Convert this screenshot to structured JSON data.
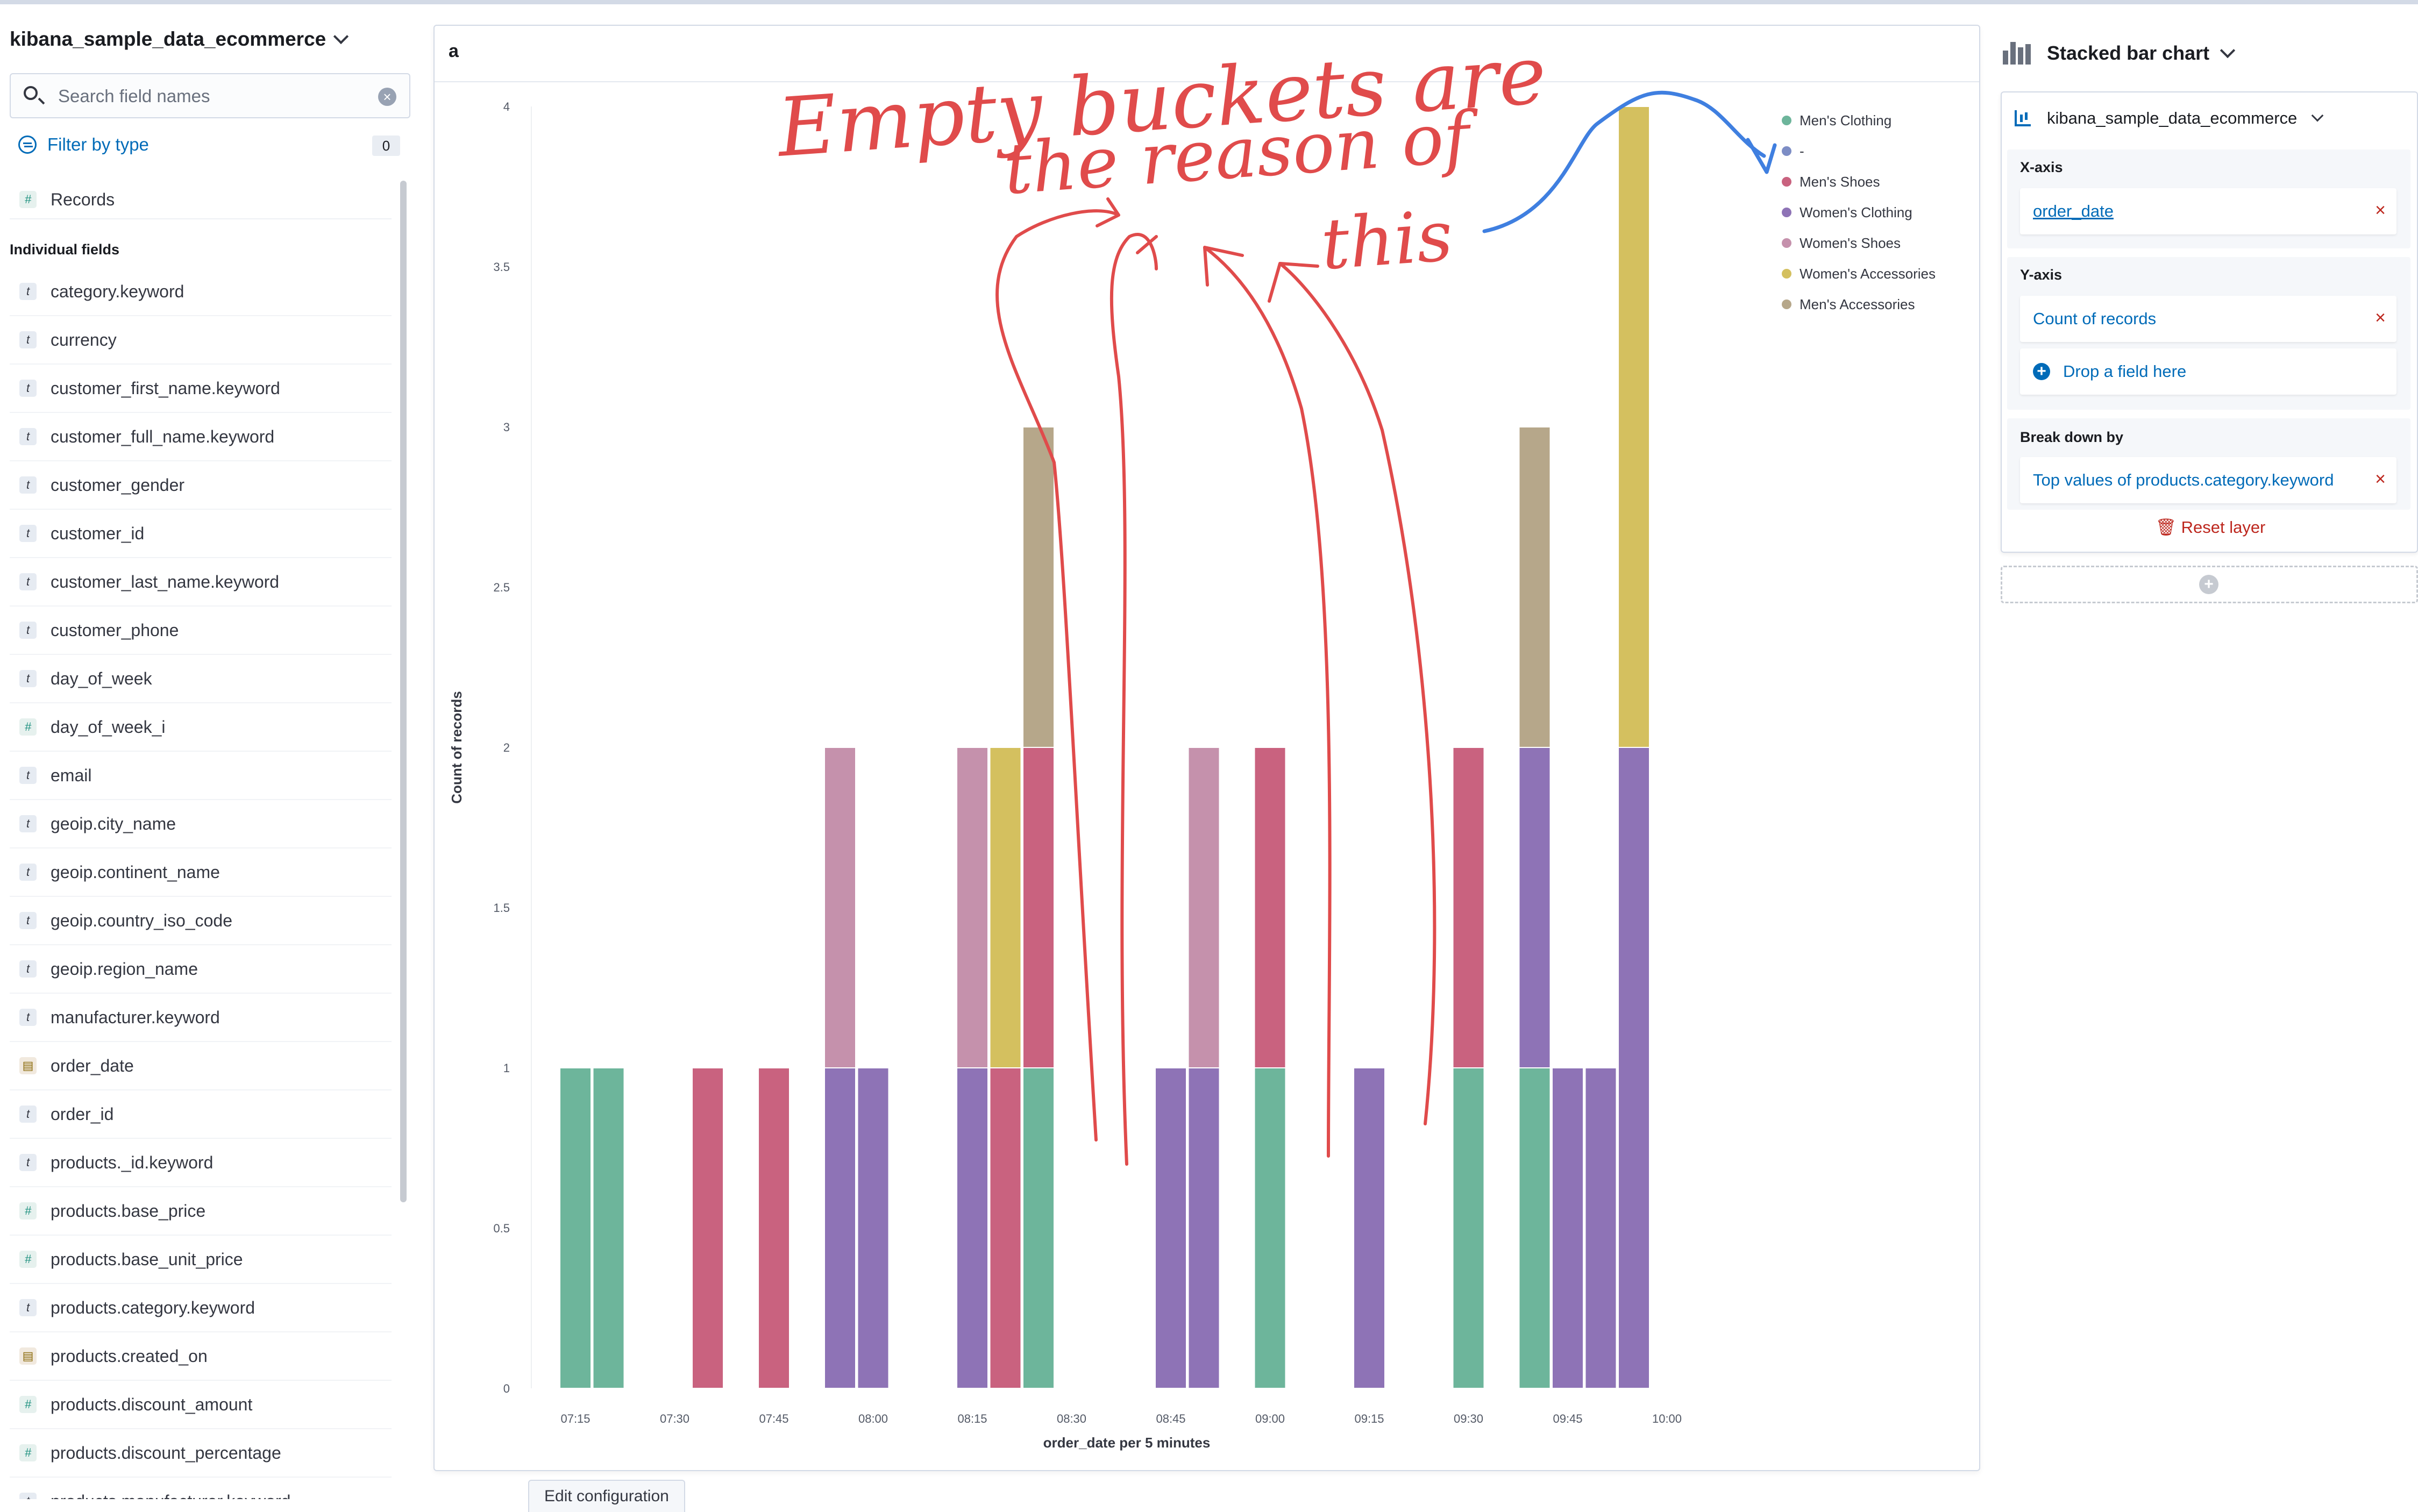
{
  "sidebar": {
    "index_pattern": "kibana_sample_data_ecommerce",
    "search_placeholder": "Search field names",
    "filter_label": "Filter by type",
    "filter_count": "0",
    "records_label": "Records",
    "section_label": "Individual fields",
    "fields": [
      {
        "name": "category.keyword",
        "type": "t"
      },
      {
        "name": "currency",
        "type": "t"
      },
      {
        "name": "customer_first_name.keyword",
        "type": "t"
      },
      {
        "name": "customer_full_name.keyword",
        "type": "t"
      },
      {
        "name": "customer_gender",
        "type": "t"
      },
      {
        "name": "customer_id",
        "type": "t"
      },
      {
        "name": "customer_last_name.keyword",
        "type": "t"
      },
      {
        "name": "customer_phone",
        "type": "t"
      },
      {
        "name": "day_of_week",
        "type": "t"
      },
      {
        "name": "day_of_week_i",
        "type": "#"
      },
      {
        "name": "email",
        "type": "t"
      },
      {
        "name": "geoip.city_name",
        "type": "t"
      },
      {
        "name": "geoip.continent_name",
        "type": "t"
      },
      {
        "name": "geoip.country_iso_code",
        "type": "t"
      },
      {
        "name": "geoip.region_name",
        "type": "t"
      },
      {
        "name": "manufacturer.keyword",
        "type": "t"
      },
      {
        "name": "order_date",
        "type": "date"
      },
      {
        "name": "order_id",
        "type": "t"
      },
      {
        "name": "products._id.keyword",
        "type": "t"
      },
      {
        "name": "products.base_price",
        "type": "#"
      },
      {
        "name": "products.base_unit_price",
        "type": "#"
      },
      {
        "name": "products.category.keyword",
        "type": "t"
      },
      {
        "name": "products.created_on",
        "type": "date"
      },
      {
        "name": "products.discount_amount",
        "type": "#"
      },
      {
        "name": "products.discount_percentage",
        "type": "#"
      },
      {
        "name": "products.manufacturer.keyword",
        "type": "t"
      }
    ]
  },
  "workspace": {
    "title": "a",
    "edit_tab_label": "Edit configuration"
  },
  "config": {
    "chart_type": "Stacked bar chart",
    "layer_index": "kibana_sample_data_ecommerce",
    "x_axis_label": "X-axis",
    "x_axis_value": "order_date",
    "y_axis_label": "Y-axis",
    "y_axis_value": "Count of records",
    "drop_field_label": "Drop a field here",
    "breakdown_label": "Break down by",
    "breakdown_value": "Top values of products.category.keyword",
    "reset_label": "Reset layer"
  },
  "annotation": {
    "text_lines": [
      "Empty buckets are",
      "the reason of",
      "this"
    ],
    "red_color": "#e04b4b",
    "blue_color": "#3f7fe0"
  },
  "chart_data": {
    "type": "bar",
    "stacked": true,
    "xlabel": "order_date per 5 minutes",
    "ylabel": "Count of records",
    "ylim": [
      0,
      4
    ],
    "yticks": [
      "0",
      "0.5",
      "1",
      "1.5",
      "2",
      "2.5",
      "3",
      "3.5",
      "4"
    ],
    "xticks": [
      "07:15",
      "07:30",
      "07:45",
      "08:00",
      "08:15",
      "08:30",
      "08:45",
      "09:00",
      "09:15",
      "09:30",
      "09:45",
      "10:00"
    ],
    "legend_position": "top-right",
    "series": [
      {
        "name": "Men's Clothing",
        "color": "#6db59b"
      },
      {
        "name": "-",
        "color": "#7d8dc5"
      },
      {
        "name": "Men's Shoes",
        "color": "#c9627f"
      },
      {
        "name": "Women's Clothing",
        "color": "#8e73b6"
      },
      {
        "name": "Women's Shoes",
        "color": "#c591ac"
      },
      {
        "name": "Women's Accessories",
        "color": "#d4c05f"
      },
      {
        "name": "Men's Accessories",
        "color": "#b6a78a"
      }
    ],
    "bars": [
      {
        "x": "07:15",
        "segments": [
          [
            "Men's Clothing",
            1
          ]
        ]
      },
      {
        "x": "07:20",
        "segments": [
          [
            "Men's Clothing",
            1
          ]
        ]
      },
      {
        "x": "07:35",
        "segments": [
          [
            "Men's Shoes",
            1
          ]
        ]
      },
      {
        "x": "07:45",
        "segments": [
          [
            "Men's Shoes",
            1
          ]
        ]
      },
      {
        "x": "07:55",
        "segments": [
          [
            "Women's Clothing",
            1
          ],
          [
            "Women's Shoes",
            1
          ]
        ]
      },
      {
        "x": "08:00",
        "segments": [
          [
            "Women's Clothing",
            1
          ]
        ]
      },
      {
        "x": "08:15",
        "segments": [
          [
            "Women's Clothing",
            1
          ],
          [
            "Women's Shoes",
            1
          ]
        ]
      },
      {
        "x": "08:20",
        "segments": [
          [
            "Men's Shoes",
            1
          ],
          [
            "Women's Accessories",
            1
          ]
        ]
      },
      {
        "x": "08:25",
        "segments": [
          [
            "Men's Clothing",
            1
          ],
          [
            "Men's Shoes",
            1
          ],
          [
            "Men's Accessories",
            1
          ]
        ]
      },
      {
        "x": "08:45",
        "segments": [
          [
            "Women's Clothing",
            1
          ]
        ]
      },
      {
        "x": "08:50",
        "segments": [
          [
            "Women's Clothing",
            1
          ],
          [
            "Women's Shoes",
            1
          ]
        ]
      },
      {
        "x": "09:00",
        "segments": [
          [
            "Men's Clothing",
            1
          ],
          [
            "Men's Shoes",
            1
          ]
        ]
      },
      {
        "x": "09:15",
        "segments": [
          [
            "Women's Clothing",
            1
          ]
        ]
      },
      {
        "x": "09:30",
        "segments": [
          [
            "Men's Clothing",
            1
          ],
          [
            "Men's Shoes",
            1
          ]
        ]
      },
      {
        "x": "09:40",
        "segments": [
          [
            "Men's Clothing",
            1
          ],
          [
            "Women's Clothing",
            1
          ],
          [
            "Men's Accessories",
            1
          ]
        ]
      },
      {
        "x": "09:45",
        "segments": [
          [
            "Women's Clothing",
            1
          ]
        ]
      },
      {
        "x": "09:50",
        "segments": [
          [
            "Women's Clothing",
            1
          ]
        ]
      },
      {
        "x": "09:55",
        "segments": [
          [
            "Women's Clothing",
            2
          ],
          [
            "Women's Accessories",
            2
          ]
        ]
      }
    ]
  }
}
